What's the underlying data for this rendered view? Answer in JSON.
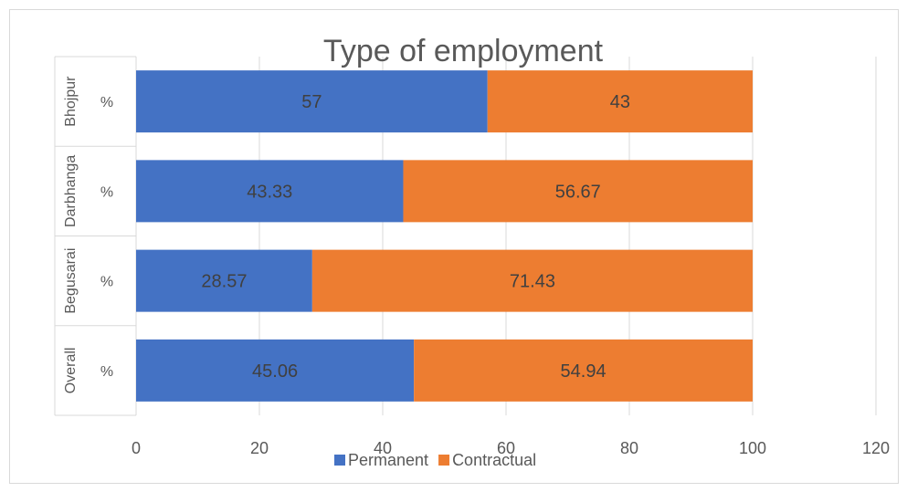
{
  "chart_data": {
    "type": "bar",
    "orientation": "horizontal",
    "stacked": true,
    "title": "Type of employment",
    "groups": [
      "Bhojpur",
      "Darbhanga",
      "Begusarai",
      "Overall"
    ],
    "categories": [
      "%",
      "%",
      "%",
      "%"
    ],
    "series": [
      {
        "name": "Permanent",
        "color": "#4472c4",
        "values": [
          57,
          43.33,
          28.57,
          45.06
        ]
      },
      {
        "name": "Contractual",
        "color": "#ed7d31",
        "values": [
          43,
          56.67,
          71.43,
          54.94
        ]
      }
    ],
    "data_labels": [
      [
        "57",
        "43.33",
        "28.57",
        "45.06"
      ],
      [
        "43",
        "56.67",
        "71.43",
        "54.94"
      ]
    ],
    "xlim": [
      0,
      120
    ],
    "xticks": [
      "0",
      "20",
      "40",
      "60",
      "80",
      "100",
      "120"
    ],
    "grid": "vertical",
    "legend": "bottom"
  }
}
